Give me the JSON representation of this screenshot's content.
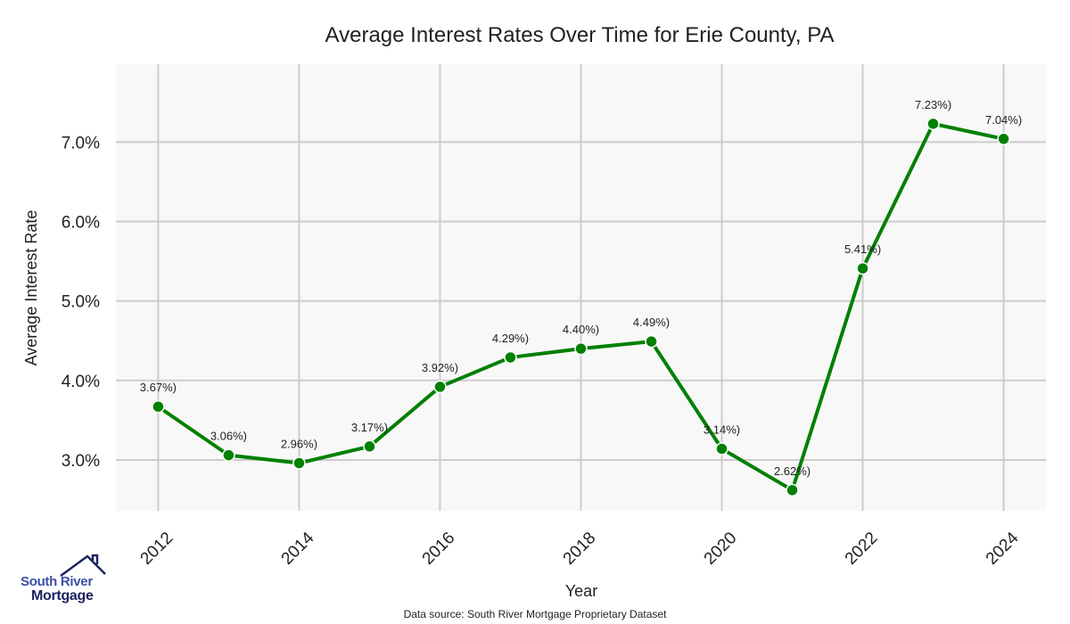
{
  "chart_data": {
    "type": "line",
    "title": "Average Interest Rates Over Time for Erie County, PA",
    "xlabel": "Year",
    "ylabel": "Average Interest Rate",
    "x": [
      2012,
      2013,
      2014,
      2015,
      2016,
      2017,
      2018,
      2019,
      2020,
      2021,
      2022,
      2023,
      2024
    ],
    "values": [
      3.67,
      3.06,
      2.96,
      3.17,
      3.92,
      4.29,
      4.4,
      4.49,
      3.14,
      2.62,
      5.41,
      7.23,
      7.04
    ],
    "data_labels": [
      "3.67%)",
      "3.06%)",
      "2.96%)",
      "3.17%)",
      "3.92%)",
      "4.29%)",
      "4.40%)",
      "4.49%)",
      "3.14%)",
      "2.62%)",
      "5.41%)",
      "7.23%)",
      "7.04%)"
    ],
    "xticks": [
      2012,
      2014,
      2016,
      2018,
      2020,
      2022,
      2024
    ],
    "xtick_labels": [
      "2012",
      "2014",
      "2016",
      "2018",
      "2020",
      "2022",
      "2024"
    ],
    "yticks": [
      3,
      4,
      5,
      6,
      7
    ],
    "ytick_labels": [
      "3.0%",
      "4.0%",
      "5.0%",
      "6.0%",
      "7.0%"
    ],
    "xlim": [
      2011.4,
      2024.6
    ],
    "ylim": [
      2.36,
      7.98
    ],
    "grid": true,
    "line_color": "#008000",
    "background_color": "#f8f8f8"
  },
  "footer": {
    "source": "Data source: South River Mortgage Proprietary Dataset"
  },
  "logo": {
    "line1": "South River",
    "line2": "Mortgage"
  }
}
